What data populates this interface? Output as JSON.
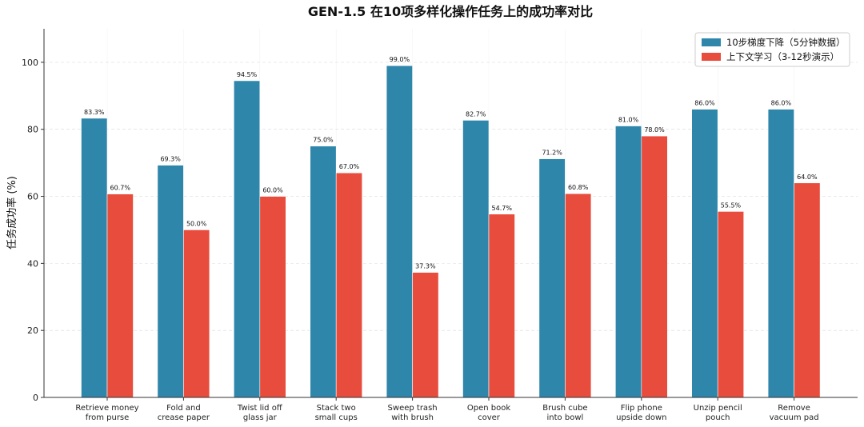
{
  "chart_data": {
    "type": "bar",
    "title": "GEN-1.5 在10项多样化操作任务上的成功率对比",
    "xlabel": "",
    "ylabel": "任务成功率 (%)",
    "ylim": [
      0,
      110
    ],
    "yticks": [
      0,
      20,
      40,
      60,
      80,
      100
    ],
    "grid": true,
    "legend_position": "top-right",
    "categories": [
      [
        "Retrieve money",
        "from purse"
      ],
      [
        "Fold and",
        "crease paper"
      ],
      [
        "Twist lid off",
        "glass jar"
      ],
      [
        "Stack two",
        "small cups"
      ],
      [
        "Sweep trash",
        "with brush"
      ],
      [
        "Open book",
        "cover"
      ],
      [
        "Brush cube",
        "into bowl"
      ],
      [
        "Flip phone",
        "upside down"
      ],
      [
        "Unzip pencil",
        "pouch"
      ],
      [
        "Remove",
        "vacuum pad"
      ]
    ],
    "series": [
      {
        "name": "10步梯度下降（5分钟数据）",
        "color": "#2E86AB",
        "values": [
          83.3,
          69.3,
          94.5,
          75.0,
          99.0,
          82.7,
          71.2,
          81.0,
          86.0,
          86.0
        ],
        "labels": [
          "83.3%",
          "69.3%",
          "94.5%",
          "75.0%",
          "99.0%",
          "82.7%",
          "71.2%",
          "81.0%",
          "86.0%",
          "86.0%"
        ]
      },
      {
        "name": "上下文学习（3-12秒演示）",
        "color": "#E84C3D",
        "values": [
          60.7,
          50.0,
          60.0,
          67.0,
          37.3,
          54.7,
          60.8,
          78.0,
          55.5,
          64.0
        ],
        "labels": [
          "60.7%",
          "50.0%",
          "60.0%",
          "67.0%",
          "37.3%",
          "54.7%",
          "60.8%",
          "78.0%",
          "55.5%",
          "64.0%"
        ]
      }
    ]
  }
}
